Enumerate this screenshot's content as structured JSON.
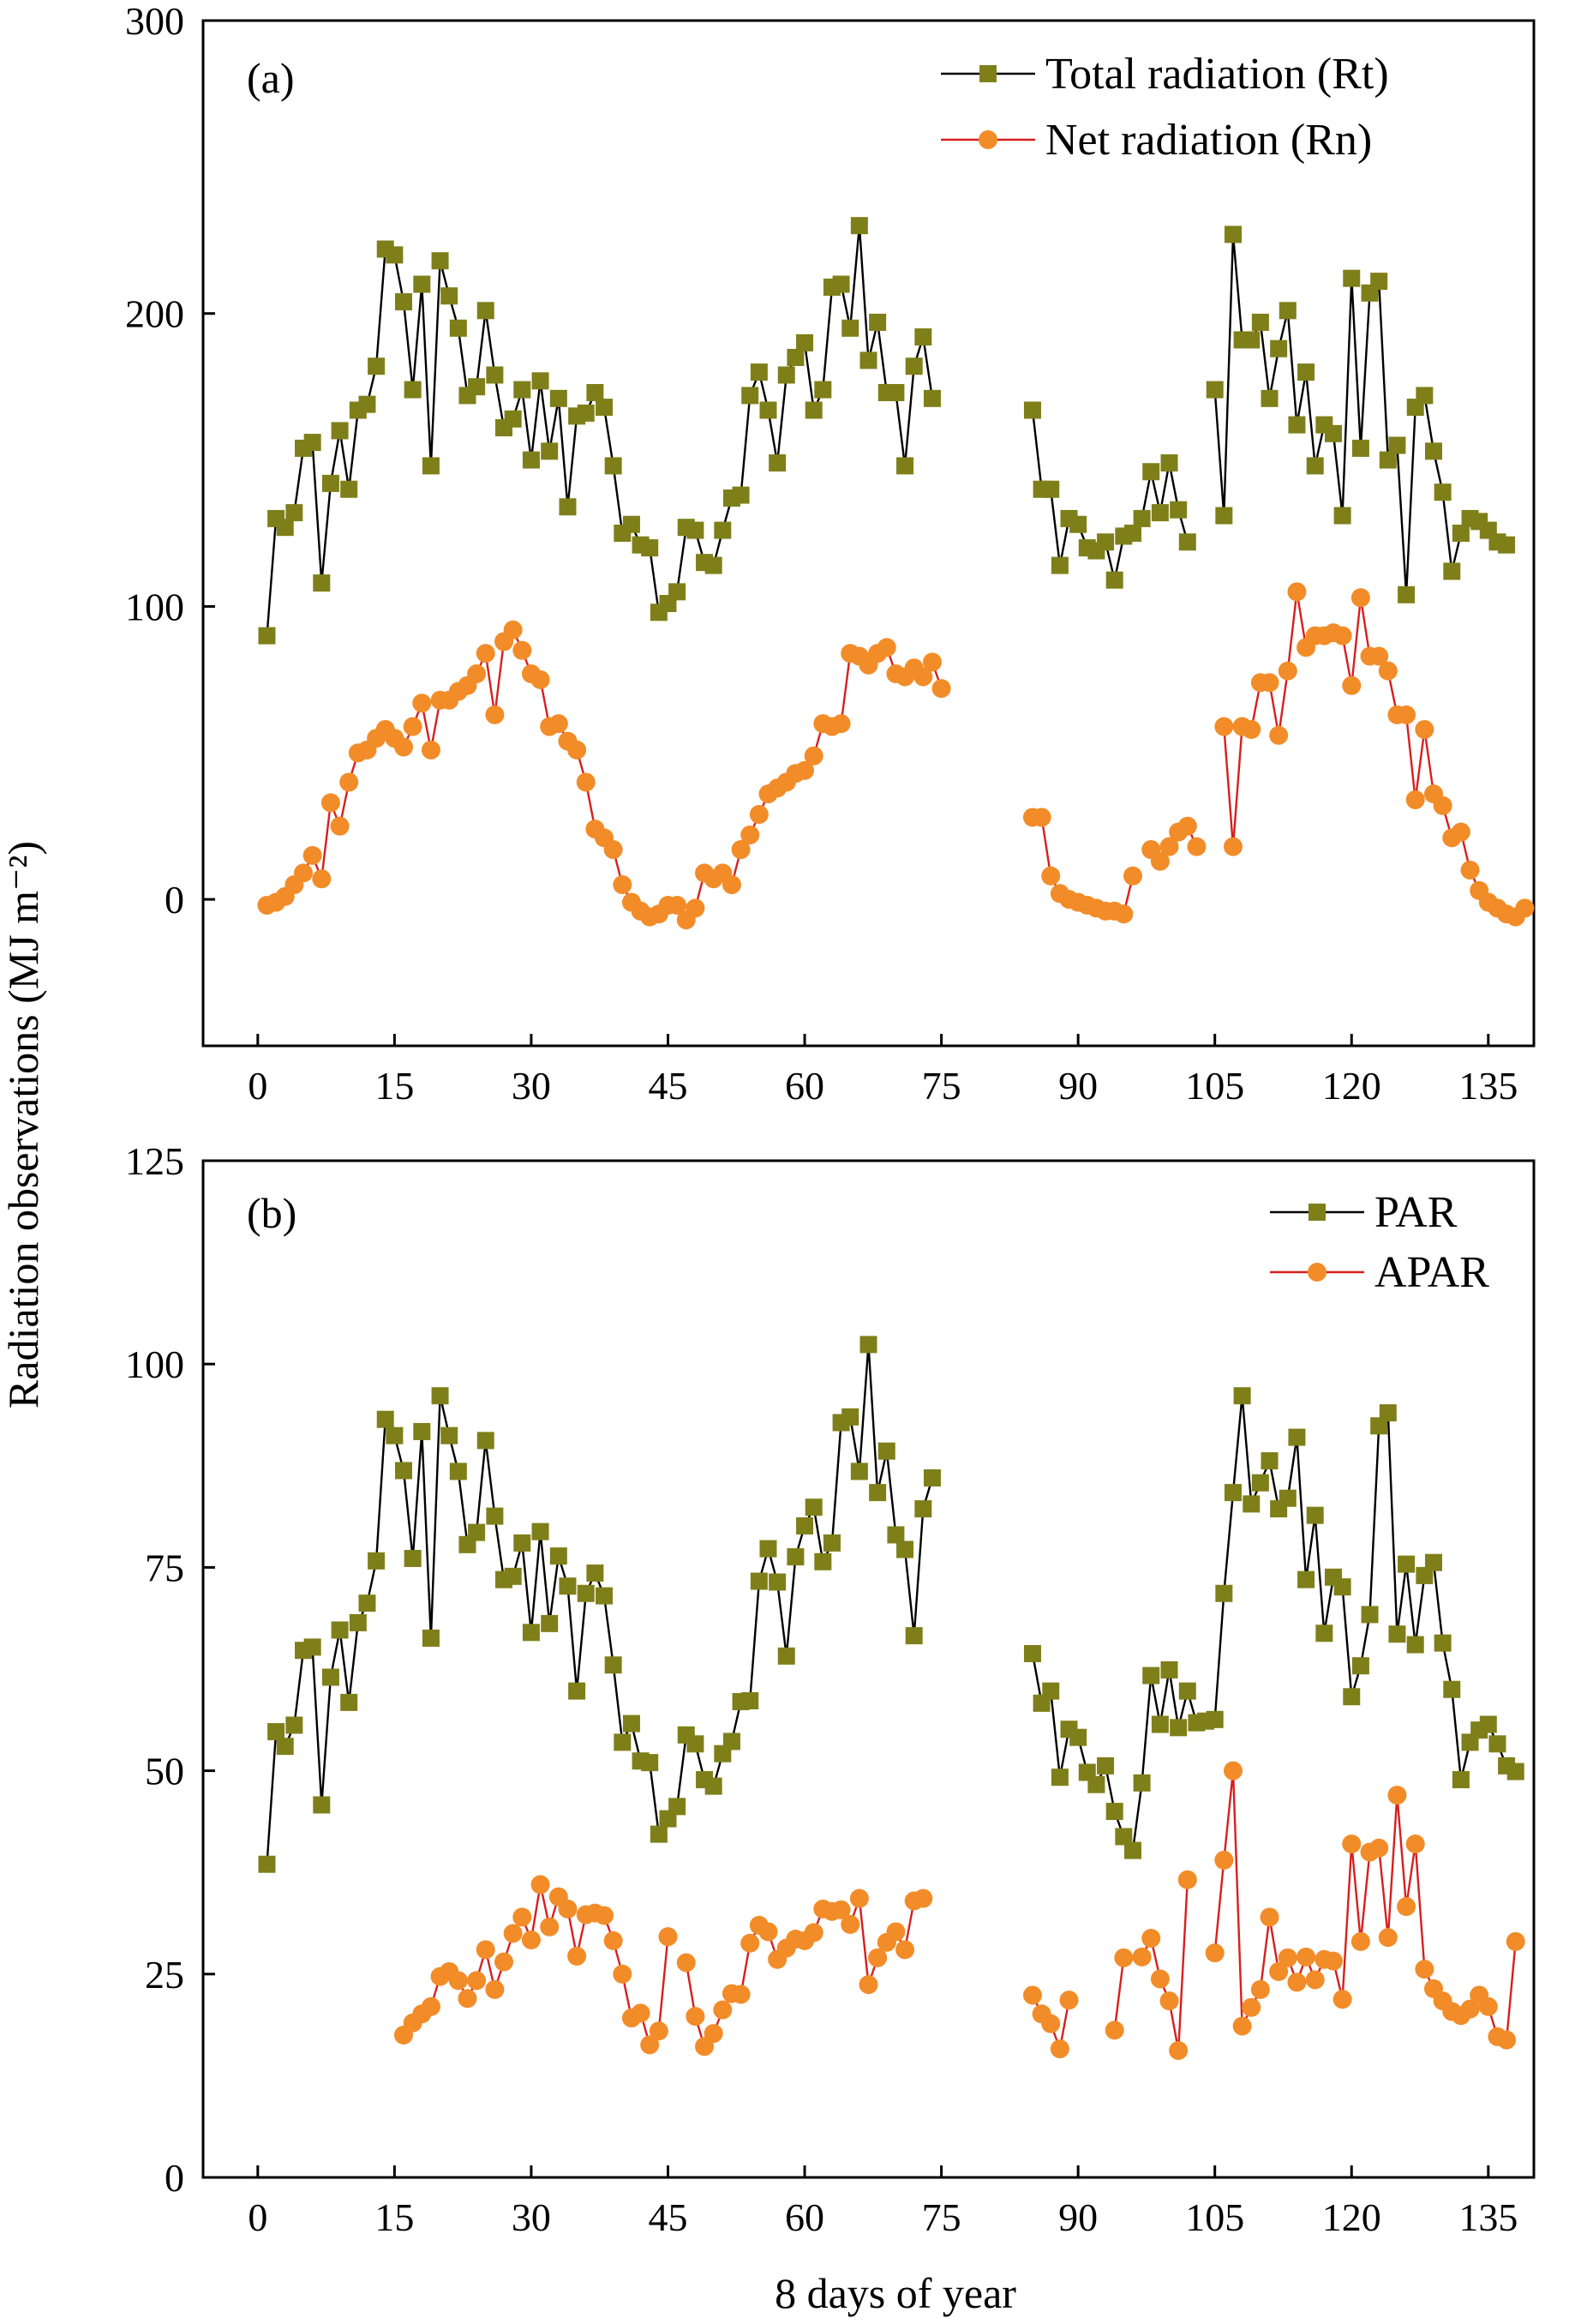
{
  "figure": {
    "ylabel": "Radiation observations (MJ m⁻²)",
    "xlabel": "8 days of year"
  },
  "colors": {
    "olive_marker": "#7f7f1a",
    "olive_line": "#000000",
    "orange_marker": "#f28c28",
    "orange_line": "#d71f1f"
  },
  "chart_data": [
    {
      "type": "line",
      "panel_label": "(a)",
      "title": "",
      "xlabel": "8 days of year",
      "ylabel": "Radiation observations (MJ m⁻²)",
      "xlim": [
        -6,
        140
      ],
      "ylim": [
        -50,
        300
      ],
      "xticks": [
        0,
        15,
        30,
        45,
        60,
        75,
        90,
        105,
        120,
        135
      ],
      "yticks": [
        0,
        100,
        200,
        300
      ],
      "legend_position": "top-right",
      "grid": false,
      "series": [
        {
          "name": "Total radiation (Rt)",
          "marker": "square",
          "x_start": 1,
          "values": [
            90,
            130,
            127,
            132,
            154,
            156,
            108,
            142,
            160,
            140,
            167,
            169,
            182,
            222,
            220,
            204,
            174,
            210,
            148,
            218,
            206,
            195,
            172,
            175,
            201,
            179,
            161,
            164,
            174,
            150,
            177,
            153,
            171,
            134,
            165,
            166,
            173,
            168,
            148,
            125,
            128,
            121,
            120,
            98,
            101,
            105,
            127,
            126,
            115,
            114,
            126,
            137,
            138,
            172,
            180,
            167,
            149,
            179,
            185,
            190,
            167,
            174,
            209,
            210,
            195,
            230,
            184,
            197,
            173,
            173,
            148,
            182,
            192,
            171,
            null,
            null,
            null,
            null,
            null,
            null,
            null,
            null,
            null,
            null,
            167,
            140,
            140,
            114,
            130,
            128,
            120,
            119,
            122,
            109,
            124,
            125,
            130,
            146,
            132,
            149,
            133,
            122,
            null,
            null,
            174,
            131,
            227,
            191,
            191,
            197,
            171,
            188,
            201,
            162,
            180,
            148,
            162,
            159,
            131,
            212,
            154,
            207,
            211,
            150,
            155,
            104,
            168,
            172,
            153,
            139,
            112,
            125,
            130,
            129,
            126,
            122,
            121
          ]
        },
        {
          "name": "Net radiation (Rn)",
          "marker": "circle",
          "x_start": 1,
          "values": [
            -2,
            -1,
            1,
            5,
            9,
            15,
            7,
            33,
            25,
            40,
            50,
            51,
            55,
            58,
            55,
            52,
            59,
            67,
            51,
            68,
            68,
            71,
            73,
            77,
            84,
            63,
            88,
            92,
            85,
            77,
            75,
            59,
            60,
            54,
            51,
            40,
            24,
            21,
            17,
            5,
            -1,
            -4,
            -6,
            -5,
            -2,
            -2,
            -7,
            -3,
            9,
            7,
            9,
            5,
            17,
            22,
            29,
            36,
            38,
            40,
            43,
            44,
            49,
            60,
            59,
            60,
            84,
            83,
            80,
            84,
            86,
            77,
            76,
            79,
            76,
            81,
            72,
            null,
            null,
            null,
            null,
            null,
            null,
            null,
            null,
            null,
            28,
            28,
            8,
            2,
            0,
            -1,
            -2,
            -3,
            -4,
            -4,
            -5,
            8,
            null,
            17,
            13,
            18,
            23,
            25,
            18,
            null,
            null,
            59,
            18,
            59,
            58,
            74,
            74,
            56,
            78,
            105,
            86,
            90,
            90,
            91,
            90,
            73,
            103,
            83,
            83,
            78,
            63,
            63,
            34,
            58,
            36,
            32,
            21,
            23,
            10,
            3,
            -1,
            -3,
            -5,
            -6,
            -3
          ]
        }
      ]
    },
    {
      "type": "line",
      "panel_label": "(b)",
      "title": "",
      "xlabel": "8 days of year",
      "ylabel": "Radiation observations (MJ m⁻²)",
      "xlim": [
        -6,
        140
      ],
      "ylim": [
        0,
        125
      ],
      "xticks": [
        0,
        15,
        30,
        45,
        60,
        75,
        90,
        105,
        120,
        135
      ],
      "yticks": [
        0,
        25,
        50,
        75,
        100,
        125
      ],
      "legend_position": "top-right",
      "grid": false,
      "series": [
        {
          "name": "PAR",
          "marker": "square",
          "x_start": 1,
          "values": [
            38.5,
            54.8,
            53,
            55.6,
            64.8,
            65.2,
            45.8,
            61.5,
            67.3,
            58.4,
            68.2,
            70.6,
            75.8,
            93.2,
            91.2,
            86.9,
            76.1,
            91.7,
            66.3,
            96.1,
            91.2,
            86.8,
            77.8,
            79.3,
            90.6,
            81.3,
            73.5,
            73.9,
            78.0,
            67.0,
            79.4,
            68.1,
            76.4,
            72.7,
            59.8,
            71.8,
            74.3,
            71.5,
            63.0,
            53.5,
            55.8,
            51.2,
            51.0,
            42.2,
            44.1,
            45.6,
            54.4,
            53.3,
            48.9,
            48.1,
            52.1,
            53.6,
            58.5,
            58.6,
            73.3,
            77.3,
            73.2,
            64.1,
            76.3,
            80.1,
            82.4,
            75.7,
            78.0,
            92.8,
            93.5,
            86.8,
            102.4,
            84.2,
            89.3,
            79.0,
            77.2,
            66.6,
            82.2,
            86.0,
            null,
            null,
            null,
            null,
            null,
            null,
            null,
            null,
            null,
            null,
            64.4,
            58.3,
            59.8,
            49.2,
            55.1,
            54.1,
            49.8,
            48.3,
            50.6,
            45.0,
            41.9,
            40.2,
            48.5,
            61.7,
            55.7,
            62.4,
            55.3,
            59.8,
            55.9,
            56.1,
            56.3,
            71.8,
            84.2,
            96.1,
            82.8,
            85.4,
            88.1,
            82.2,
            83.5,
            91.0,
            73.5,
            81.4,
            66.9,
            73.8,
            72.6,
            59.1,
            62.9,
            69.2,
            92.4,
            94.0,
            66.8,
            75.4,
            65.5,
            74.0,
            75.6,
            65.7,
            60.0,
            48.9,
            53.5,
            55.0,
            55.7,
            53.3,
            50.6,
            49.9
          ]
        },
        {
          "name": "APAR",
          "marker": "circle",
          "x_start": 1,
          "values": [
            null,
            null,
            null,
            null,
            null,
            null,
            null,
            null,
            null,
            null,
            null,
            null,
            null,
            null,
            null,
            17.5,
            19.0,
            20.1,
            21.0,
            24.7,
            25.3,
            24.2,
            22.0,
            24.2,
            28.0,
            23.1,
            26.5,
            30.0,
            32.0,
            29.2,
            36.0,
            30.8,
            34.5,
            33.0,
            27.2,
            32.3,
            32.5,
            32.2,
            29.1,
            25.0,
            19.6,
            20.2,
            16.3,
            18.0,
            29.6,
            null,
            26.4,
            19.8,
            16.1,
            17.7,
            20.6,
            22.6,
            22.5,
            28.8,
            31.0,
            30.2,
            26.8,
            28.2,
            29.3,
            29.1,
            30.1,
            33.0,
            32.7,
            32.9,
            31.1,
            34.3,
            23.7,
            27.0,
            28.9,
            30.2,
            28.0,
            34.0,
            34.3,
            null,
            null,
            null,
            null,
            null,
            null,
            null,
            null,
            null,
            null,
            null,
            22.4,
            20.1,
            18.9,
            15.8,
            21.8,
            null,
            null,
            null,
            null,
            18.1,
            27.0,
            null,
            27.1,
            29.4,
            24.4,
            21.7,
            15.6,
            36.6,
            null,
            null,
            27.6,
            39.0,
            50.0,
            18.6,
            20.9,
            23.1,
            32.0,
            25.3,
            27.0,
            24.0,
            27.1,
            24.3,
            26.8,
            26.6,
            21.9,
            41.0,
            29.0,
            40.0,
            40.5,
            29.5,
            47.0,
            33.3,
            41.0,
            25.6,
            23.2,
            21.7,
            20.4,
            19.9,
            20.7,
            22.4,
            21.0,
            17.3,
            16.9,
            29.0
          ]
        }
      ]
    }
  ]
}
